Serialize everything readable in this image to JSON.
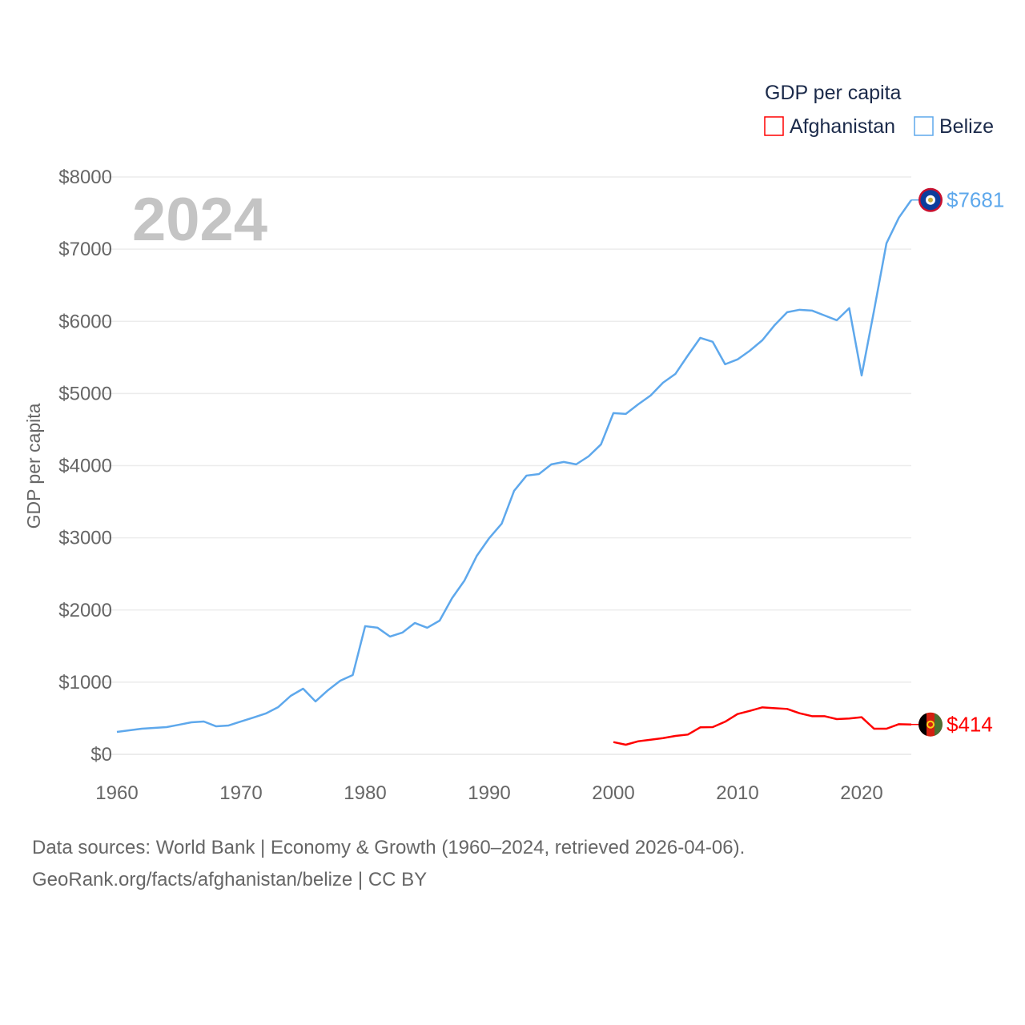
{
  "chart_data": {
    "type": "line",
    "title": "GDP per capita",
    "year_label": "2024",
    "xlabel": "",
    "ylabel": "GDP per capita",
    "xlim": [
      1960,
      2024
    ],
    "ylim": [
      0,
      8000
    ],
    "grid": true,
    "legend_placement": "top-right",
    "x_ticks": [
      "1960",
      "1970",
      "1980",
      "1990",
      "2000",
      "2010",
      "2020"
    ],
    "y_ticks": [
      "$0",
      "$1000",
      "$2000",
      "$3000",
      "$4000",
      "$5000",
      "$6000",
      "$7000",
      "$8000"
    ],
    "series": [
      {
        "name": "Afghanistan",
        "color": "#ff0000",
        "end_label": "$414",
        "x": [
          2000,
          2001,
          2002,
          2003,
          2004,
          2005,
          2006,
          2007,
          2008,
          2009,
          2010,
          2011,
          2012,
          2013,
          2014,
          2015,
          2016,
          2017,
          2018,
          2019,
          2020,
          2021,
          2022,
          2023,
          2024
        ],
        "values": [
          170,
          133,
          181,
          203,
          225,
          255,
          274,
          374,
          377,
          452,
          558,
          603,
          651,
          640,
          629,
          569,
          529,
          529,
          488,
          496,
          514,
          355,
          355,
          418,
          414
        ]
      },
      {
        "name": "Belize",
        "color": "#5ea8ec",
        "end_label": "$7681",
        "x": [
          1960,
          1961,
          1962,
          1963,
          1964,
          1965,
          1966,
          1967,
          1968,
          1969,
          1970,
          1971,
          1972,
          1973,
          1974,
          1975,
          1976,
          1977,
          1978,
          1979,
          1980,
          1981,
          1982,
          1983,
          1984,
          1985,
          1986,
          1987,
          1988,
          1989,
          1990,
          1991,
          1992,
          1993,
          1994,
          1995,
          1996,
          1997,
          1998,
          1999,
          2000,
          2001,
          2002,
          2003,
          2004,
          2005,
          2006,
          2007,
          2008,
          2009,
          2010,
          2011,
          2012,
          2013,
          2014,
          2015,
          2016,
          2017,
          2018,
          2019,
          2020,
          2021,
          2022,
          2023,
          2024
        ],
        "values": [
          311,
          333,
          355,
          366,
          377,
          410,
          444,
          455,
          388,
          400,
          455,
          510,
          566,
          655,
          810,
          910,
          733,
          888,
          1021,
          1099,
          1776,
          1754,
          1632,
          1687,
          1820,
          1754,
          1853,
          2164,
          2408,
          2752,
          2997,
          3196,
          3651,
          3862,
          3884,
          4018,
          4051,
          4018,
          4129,
          4295,
          4728,
          4717,
          4850,
          4972,
          5150,
          5272,
          5527,
          5771,
          5716,
          5405,
          5472,
          5594,
          5738,
          5949,
          6126,
          6160,
          6149,
          6082,
          6015,
          6182,
          5250,
          6150,
          7081,
          7436,
          7681
        ]
      }
    ]
  },
  "footer": {
    "line1": "Data sources: World Bank | Economy & Growth (1960–2024, retrieved 2026-04-06).",
    "line2": "GeoRank.org/facts/afghanistan/belize | CC BY"
  }
}
